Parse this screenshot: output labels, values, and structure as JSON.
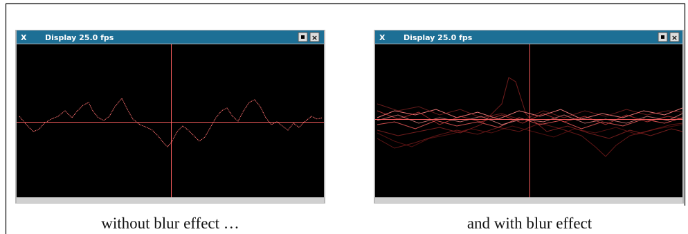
{
  "windows": [
    {
      "title": "Display 25.0 fps",
      "caption": "without blur effect …"
    },
    {
      "title": "Display 25.0 fps",
      "caption": "and with blur effect"
    }
  ]
}
